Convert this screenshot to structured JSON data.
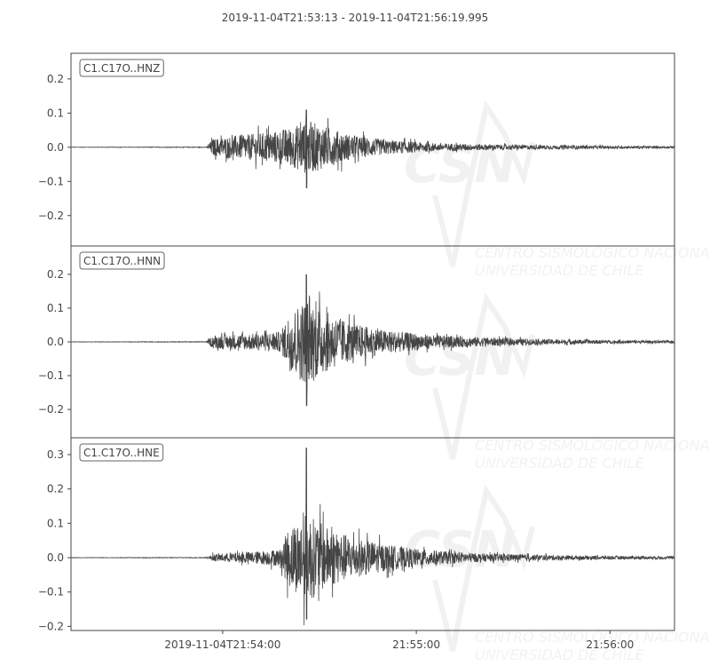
{
  "chart_data": {
    "type": "line",
    "title": "2019-11-04T21:53:13  -  2019-11-04T21:56:19.995",
    "x_range": [
      "2019-11-04T21:53:13",
      "2019-11-04T21:56:19.995"
    ],
    "x_ticks": [
      {
        "time": "21:54:00",
        "label": "2019-11-04T21:54:00"
      },
      {
        "time": "21:55:00",
        "label": "21:55:00"
      },
      {
        "time": "21:56:00",
        "label": "21:56:00"
      }
    ],
    "line_color": "#444444",
    "grid": false,
    "watermark": [
      "CSN",
      "CENTRO SISMOLÓGICO NACIONAL",
      "UNIVERSIDAD DE CHILE"
    ],
    "traces": [
      {
        "name": "C1.C17O..HNZ",
        "ylim": [
          -0.289,
          0.275
        ],
        "y_ticks": [
          {
            "v": 0.2,
            "label": "0.2"
          },
          {
            "v": 0.1,
            "label": "0.1"
          },
          {
            "v": 0.0,
            "label": "0.0"
          },
          {
            "v": -0.1,
            "label": "−0.1"
          },
          {
            "v": -0.2,
            "label": "−0.2"
          }
        ],
        "peak_max": 0.11,
        "peak_min": -0.12,
        "envelope": [
          [
            "21:53:13",
            0.0005
          ],
          [
            "21:53:55",
            0.001
          ],
          [
            "21:53:57",
            0.025
          ],
          [
            "21:54:05",
            0.035
          ],
          [
            "21:54:15",
            0.045
          ],
          [
            "21:54:22",
            0.06
          ],
          [
            "21:54:26",
            0.08
          ],
          [
            "21:54:32",
            0.06
          ],
          [
            "21:54:40",
            0.035
          ],
          [
            "21:54:50",
            0.022
          ],
          [
            "21:55:05",
            0.012
          ],
          [
            "21:55:30",
            0.007
          ],
          [
            "21:56:00",
            0.004
          ],
          [
            "21:56:19",
            0.003
          ]
        ]
      },
      {
        "name": "C1.C17O..HNN",
        "ylim": [
          -0.284,
          0.284
        ],
        "y_ticks": [
          {
            "v": 0.2,
            "label": "0.2"
          },
          {
            "v": 0.1,
            "label": "0.1"
          },
          {
            "v": 0.0,
            "label": "0.0"
          },
          {
            "v": -0.1,
            "label": "−0.1"
          },
          {
            "v": -0.2,
            "label": "−0.2"
          }
        ],
        "peak_max": 0.2,
        "peak_min": -0.19,
        "envelope": [
          [
            "21:53:13",
            0.0005
          ],
          [
            "21:53:55",
            0.001
          ],
          [
            "21:53:57",
            0.02
          ],
          [
            "21:54:10",
            0.025
          ],
          [
            "21:54:18",
            0.03
          ],
          [
            "21:54:21",
            0.09
          ],
          [
            "21:54:26",
            0.13
          ],
          [
            "21:54:32",
            0.09
          ],
          [
            "21:54:40",
            0.055
          ],
          [
            "21:54:50",
            0.035
          ],
          [
            "21:55:05",
            0.02
          ],
          [
            "21:55:30",
            0.01
          ],
          [
            "21:56:00",
            0.005
          ],
          [
            "21:56:19",
            0.004
          ]
        ]
      },
      {
        "name": "C1.C17O..HNE",
        "ylim": [
          -0.212,
          0.349
        ],
        "y_ticks": [
          {
            "v": 0.3,
            "label": "0.3"
          },
          {
            "v": 0.2,
            "label": "0.2"
          },
          {
            "v": 0.1,
            "label": "0.1"
          },
          {
            "v": 0.0,
            "label": "0.0"
          },
          {
            "v": -0.1,
            "label": "−0.1"
          },
          {
            "v": -0.2,
            "label": "−0.2"
          }
        ],
        "peak_max": 0.32,
        "peak_min": -0.18,
        "envelope": [
          [
            "21:53:13",
            0.0005
          ],
          [
            "21:53:55",
            0.001
          ],
          [
            "21:53:57",
            0.01
          ],
          [
            "21:54:10",
            0.018
          ],
          [
            "21:54:18",
            0.025
          ],
          [
            "21:54:20",
            0.08
          ],
          [
            "21:54:26",
            0.13
          ],
          [
            "21:54:32",
            0.09
          ],
          [
            "21:54:40",
            0.06
          ],
          [
            "21:54:50",
            0.04
          ],
          [
            "21:55:00",
            0.025
          ],
          [
            "21:55:20",
            0.012
          ],
          [
            "21:55:50",
            0.006
          ],
          [
            "21:56:19",
            0.004
          ]
        ]
      }
    ]
  }
}
